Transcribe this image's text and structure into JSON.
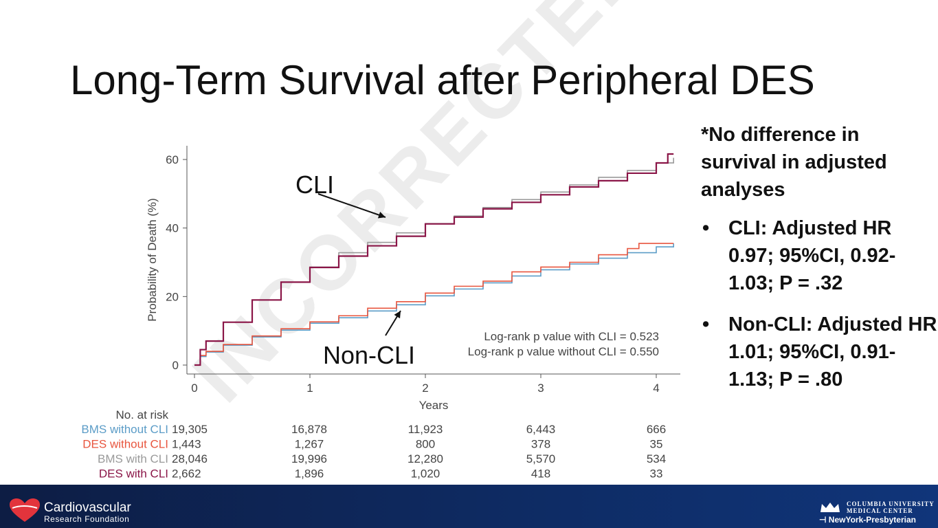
{
  "slide": {
    "title": "Long-Term Survival after Peripheral DES",
    "watermark": "INCORRECTED"
  },
  "annotations": {
    "cli": "CLI",
    "non_cli": "Non-CLI"
  },
  "side_notes": {
    "header": "*No difference in survival in adjusted analyses",
    "bullets": [
      "CLI: Adjusted HR 0.97; 95%CI, 0.92-1.03; P = .32",
      "Non-CLI: Adjusted HR 1.01; 95%CI, 0.91-1.13; P = .80"
    ]
  },
  "footer": {
    "left_name": "Cardiovascular",
    "left_sub": "Research Foundation",
    "right_line1": "Columbia University",
    "right_line2": "Medical Center",
    "right_line3": "NewYork-Presbyterian"
  },
  "chart_data": {
    "type": "line",
    "xlabel": "Years",
    "ylabel": "Probability of Death (%)",
    "xlim": [
      0,
      4.2
    ],
    "ylim": [
      0,
      62
    ],
    "xticks": [
      "0",
      "1",
      "2",
      "3",
      "4"
    ],
    "yticks": [
      "0",
      "20",
      "40",
      "60"
    ],
    "grid": false,
    "pvalues": [
      "Log-rank p value with CLI = 0.523",
      "Log-rank p value without CLI = 0.550"
    ],
    "series": [
      {
        "name": "BMS without CLI",
        "color": "#5b9cc7",
        "x": [
          0,
          0.05,
          0.1,
          0.25,
          0.5,
          0.75,
          1,
          1.25,
          1.5,
          1.75,
          2,
          2.25,
          2.5,
          2.75,
          3,
          3.25,
          3.5,
          3.75,
          4,
          4.15
        ],
        "y": [
          0,
          2.5,
          3.8,
          5.8,
          8.2,
          10.2,
          12.2,
          13.8,
          15.8,
          17.6,
          20.2,
          22.2,
          24,
          26,
          27.8,
          29.5,
          31.2,
          32.8,
          34.5,
          35.5
        ]
      },
      {
        "name": "DES without CLI",
        "color": "#e8553e",
        "x": [
          0,
          0.05,
          0.1,
          0.25,
          0.5,
          0.75,
          1,
          1.25,
          1.5,
          1.75,
          2,
          2.25,
          2.5,
          2.75,
          3,
          3.25,
          3.5,
          3.75,
          3.85,
          4,
          4.15
        ],
        "y": [
          0,
          2.8,
          4,
          6,
          8.5,
          10.6,
          12.6,
          14.4,
          16.6,
          18.5,
          21,
          23,
          24.5,
          27.2,
          28.6,
          30,
          32.2,
          34,
          35.5,
          35.5,
          35.5
        ]
      },
      {
        "name": "BMS with CLI",
        "color": "#9a9a9a",
        "x": [
          0,
          0.05,
          0.1,
          0.25,
          0.5,
          0.75,
          1,
          1.25,
          1.5,
          1.75,
          2,
          2.25,
          2.5,
          2.75,
          3,
          3.25,
          3.5,
          3.75,
          4,
          4.15
        ],
        "y": [
          0,
          4.5,
          7,
          12.5,
          19,
          24.2,
          28.6,
          32.8,
          35.8,
          38.6,
          41.3,
          43.5,
          46,
          48.3,
          50.5,
          52.6,
          54.8,
          56.8,
          59,
          60.5
        ]
      },
      {
        "name": "DES with CLI",
        "color": "#8a1547",
        "x": [
          0,
          0.05,
          0.1,
          0.25,
          0.5,
          0.75,
          1,
          1.25,
          1.5,
          1.75,
          2,
          2.25,
          2.5,
          2.75,
          3,
          3.25,
          3.5,
          3.75,
          4,
          4.1,
          4.15
        ],
        "y": [
          0,
          4.5,
          7,
          12.5,
          19,
          24.2,
          28.5,
          31.8,
          34.8,
          37.6,
          41.2,
          43.2,
          45.6,
          47.5,
          49.7,
          52,
          53.8,
          56,
          59,
          61.6,
          61.6
        ]
      }
    ],
    "risk_table": {
      "header": "No. at risk",
      "times": [
        0,
        1,
        2,
        3,
        4
      ],
      "rows": [
        {
          "label": "BMS without CLI",
          "color": "#5b9cc7",
          "values": [
            "19,305",
            "16,878",
            "11,923",
            "6,443",
            "666"
          ]
        },
        {
          "label": "DES without CLI",
          "color": "#e8553e",
          "values": [
            "1,443",
            "1,267",
            "800",
            "378",
            "35"
          ]
        },
        {
          "label": "BMS with CLI",
          "color": "#9a9a9a",
          "values": [
            "28,046",
            "19,996",
            "12,280",
            "5,570",
            "534"
          ]
        },
        {
          "label": "DES with CLI",
          "color": "#8a1547",
          "values": [
            "2,662",
            "1,896",
            "1,020",
            "418",
            "33"
          ]
        }
      ]
    }
  }
}
